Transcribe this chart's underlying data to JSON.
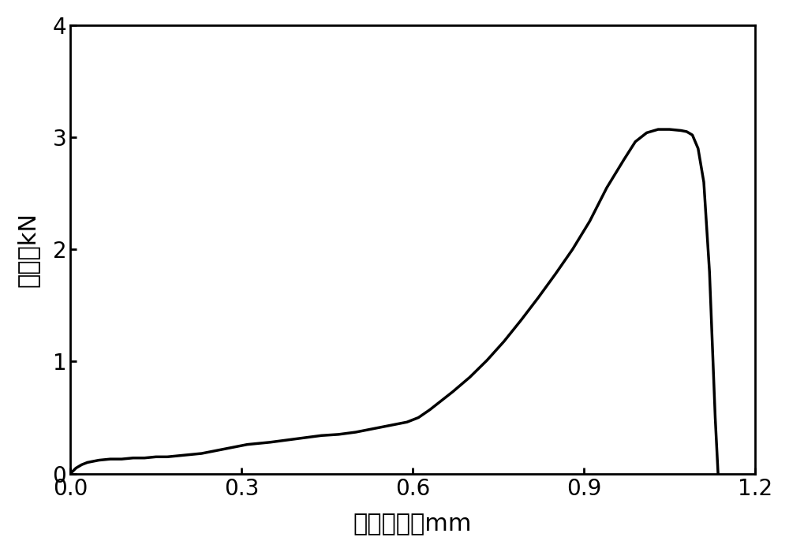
{
  "x_values": [
    0.0,
    0.01,
    0.02,
    0.03,
    0.05,
    0.07,
    0.09,
    0.11,
    0.13,
    0.15,
    0.17,
    0.19,
    0.21,
    0.23,
    0.25,
    0.27,
    0.29,
    0.31,
    0.33,
    0.35,
    0.38,
    0.41,
    0.44,
    0.47,
    0.5,
    0.53,
    0.55,
    0.57,
    0.59,
    0.61,
    0.63,
    0.65,
    0.67,
    0.7,
    0.73,
    0.76,
    0.79,
    0.82,
    0.85,
    0.88,
    0.91,
    0.94,
    0.97,
    0.99,
    1.01,
    1.03,
    1.05,
    1.07,
    1.08,
    1.09,
    1.1,
    1.11,
    1.12,
    1.13,
    1.135
  ],
  "y_values": [
    0.0,
    0.05,
    0.08,
    0.1,
    0.12,
    0.13,
    0.13,
    0.14,
    0.14,
    0.15,
    0.15,
    0.16,
    0.17,
    0.18,
    0.2,
    0.22,
    0.24,
    0.26,
    0.27,
    0.28,
    0.3,
    0.32,
    0.34,
    0.35,
    0.37,
    0.4,
    0.42,
    0.44,
    0.46,
    0.5,
    0.57,
    0.65,
    0.73,
    0.86,
    1.01,
    1.18,
    1.37,
    1.57,
    1.78,
    2.0,
    2.25,
    2.55,
    2.8,
    2.96,
    3.04,
    3.07,
    3.07,
    3.06,
    3.05,
    3.02,
    2.9,
    2.6,
    1.8,
    0.5,
    0.0
  ],
  "line_color": "#000000",
  "line_width": 2.5,
  "xlabel": "压头位移，mm",
  "ylabel": "载荷，kN",
  "xlim": [
    0,
    1.2
  ],
  "ylim": [
    0,
    4
  ],
  "xticks": [
    0,
    0.3,
    0.6,
    0.9,
    1.2
  ],
  "yticks": [
    0,
    1,
    2,
    3,
    4
  ],
  "xlabel_fontsize": 22,
  "ylabel_fontsize": 22,
  "tick_fontsize": 20,
  "background_color": "#ffffff",
  "axes_linewidth": 2.0
}
